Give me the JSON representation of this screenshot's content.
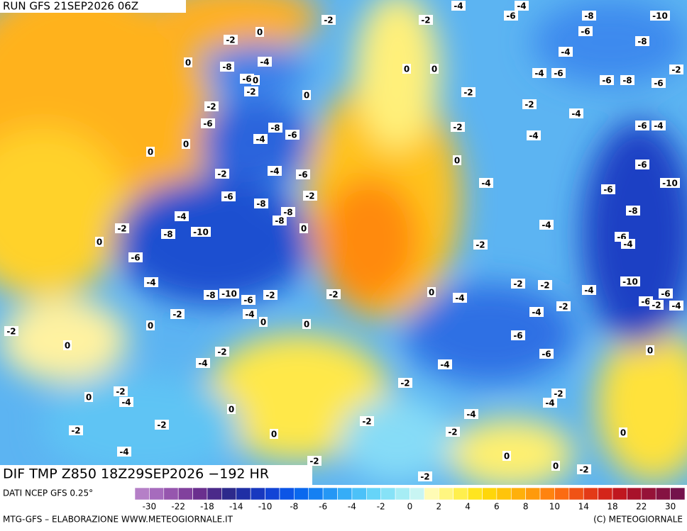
{
  "header": {
    "run": "RUN GFS 21SEP2026 06Z"
  },
  "map": {
    "labels": [
      -2,
      -2,
      -4,
      -4,
      -6,
      -8,
      -10,
      -6,
      -8,
      -2,
      0,
      -4,
      -4,
      -8,
      0,
      0,
      0,
      -4,
      -6,
      -6,
      -8,
      -2,
      -6,
      -6,
      0,
      -2,
      0,
      -2,
      -2,
      -2,
      -4,
      -6,
      -8,
      -6,
      -4,
      -2,
      -4,
      -6,
      -4,
      0,
      0,
      0,
      -2,
      -4,
      -6,
      -6,
      -2,
      -6,
      -4,
      -6,
      -10,
      -8,
      -8,
      -8,
      -4,
      -8,
      -2,
      0,
      -10,
      -8,
      -4,
      0,
      -6,
      -4,
      -2,
      -6,
      -4,
      -2,
      -2,
      -4,
      -10,
      -8,
      -10,
      -6,
      -2,
      -2,
      0,
      -4,
      -6,
      -6,
      -2,
      -4,
      -4,
      -2,
      -4,
      -2,
      0,
      0,
      0,
      -2,
      -6,
      0,
      -2,
      -6,
      0,
      -4,
      -4,
      -2,
      -2,
      -4,
      0,
      -2,
      -4,
      0,
      -4,
      -2,
      -2,
      -2,
      0,
      -2,
      0,
      -4,
      0,
      -2,
      0,
      -2,
      -2
    ]
  },
  "footer": {
    "title": "DIF TMP Z850 18Z29SEP2026 −192 HR",
    "source": "DATI NCEP GFS 0.25°",
    "credit": "MTG-GFS – ELABORAZIONE WWW.METEOGIORNALE.IT",
    "copyright": "(C) METEOGIORNALE"
  },
  "colorbar": {
    "labels": [
      -30,
      -22,
      -18,
      -14,
      -10,
      -8,
      -6,
      -4,
      -2,
      0,
      2,
      4,
      6,
      8,
      10,
      14,
      18,
      22,
      30
    ],
    "colors": [
      "#b57fc7",
      "#a66bbd",
      "#9656ae",
      "#81419d",
      "#6a2f8e",
      "#4b2a8a",
      "#2d2a8c",
      "#1f2fa5",
      "#1838bf",
      "#1244d6",
      "#0c55e6",
      "#0a68ee",
      "#1580f2",
      "#2597f5",
      "#36adf7",
      "#4cc1f8",
      "#66d4f8",
      "#86e2f7",
      "#a6edf5",
      "#c8f5f3",
      "#fffbb5",
      "#fff680",
      "#ffef4d",
      "#ffe51f",
      "#ffd60a",
      "#ffc40a",
      "#ffb00a",
      "#ff9a0c",
      "#ff830f",
      "#fb6b12",
      "#f05215",
      "#e33a17",
      "#d4251a",
      "#c0171f",
      "#a8122a",
      "#961238",
      "#851242",
      "#74124c"
    ]
  }
}
